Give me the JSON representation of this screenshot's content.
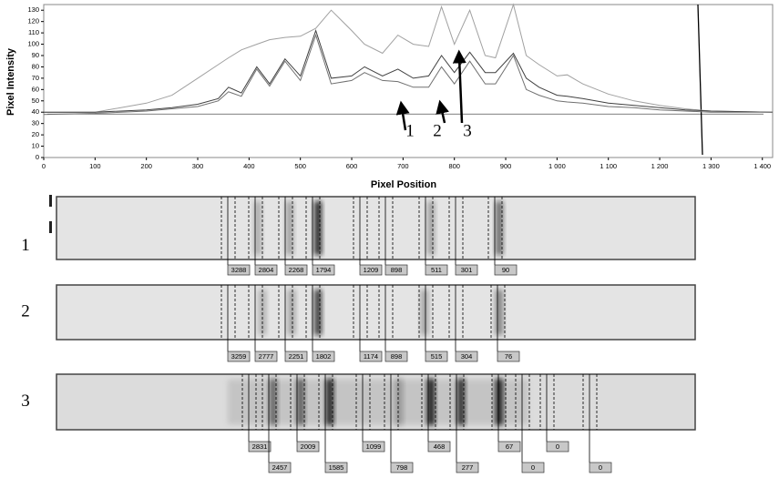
{
  "chart_data": {
    "type": "line",
    "y_label": "Pixel Intensity",
    "x_label": "Pixel Position",
    "xlim": [
      0,
      1420
    ],
    "ylim": [
      0,
      135
    ],
    "xticks": [
      0,
      100,
      200,
      300,
      400,
      500,
      600,
      700,
      800,
      900,
      {
        "value": 1000,
        "label": "1 000"
      },
      {
        "value": 1100,
        "label": "1 100"
      },
      {
        "value": 1200,
        "label": "1 200"
      },
      {
        "value": 1300,
        "label": "1 300"
      },
      {
        "value": 1400,
        "label": "1 400"
      }
    ],
    "yticks": [
      0,
      10,
      20,
      30,
      40,
      50,
      60,
      70,
      80,
      90,
      100,
      110,
      120,
      130
    ],
    "x": [
      0,
      100,
      200,
      250,
      300,
      340,
      360,
      385,
      415,
      440,
      470,
      500,
      530,
      560,
      600,
      625,
      660,
      690,
      720,
      750,
      775,
      800,
      830,
      860,
      880,
      915,
      940,
      965,
      1000,
      1020,
      1050,
      1100,
      1150,
      1200,
      1250,
      1300,
      1420
    ],
    "series": [
      {
        "color": "#a0a0a0",
        "values": [
          40,
          40,
          48,
          55,
          70,
          82,
          88,
          95,
          100,
          104,
          106,
          107,
          114,
          130,
          112,
          100,
          92,
          108,
          100,
          98,
          133,
          100,
          130,
          90,
          88,
          135,
          90,
          82,
          72,
          73,
          65,
          56,
          50,
          46,
          43,
          41,
          40
        ]
      },
      {
        "color": "#404040",
        "values": [
          40,
          40,
          42,
          44,
          47,
          52,
          62,
          57,
          80,
          65,
          87,
          72,
          112,
          70,
          72,
          80,
          72,
          78,
          70,
          72,
          90,
          75,
          93,
          75,
          75,
          92,
          70,
          62,
          55,
          54,
          52,
          48,
          46,
          44,
          42,
          41,
          40
        ]
      },
      {
        "color": "#707070",
        "values": [
          38,
          39,
          41,
          43,
          45,
          50,
          58,
          54,
          78,
          63,
          85,
          68,
          108,
          65,
          68,
          75,
          68,
          67,
          62,
          62,
          80,
          65,
          85,
          65,
          65,
          90,
          60,
          55,
          50,
          49,
          48,
          45,
          44,
          42,
          41,
          40,
          40
        ]
      }
    ],
    "annotations": [
      "1",
      "2",
      "3"
    ]
  },
  "lanes": [
    {
      "label": "1",
      "band_values": [
        3288,
        2804,
        2268,
        1794,
        1209,
        898,
        511,
        301,
        90
      ]
    },
    {
      "label": "2",
      "band_values": [
        3259,
        2777,
        2251,
        1802,
        1174,
        898,
        515,
        304,
        76
      ]
    },
    {
      "label": "3",
      "band_values": [
        2831,
        2457,
        2009,
        1585,
        1099,
        798,
        468,
        277,
        67,
        0,
        0,
        0
      ]
    }
  ]
}
